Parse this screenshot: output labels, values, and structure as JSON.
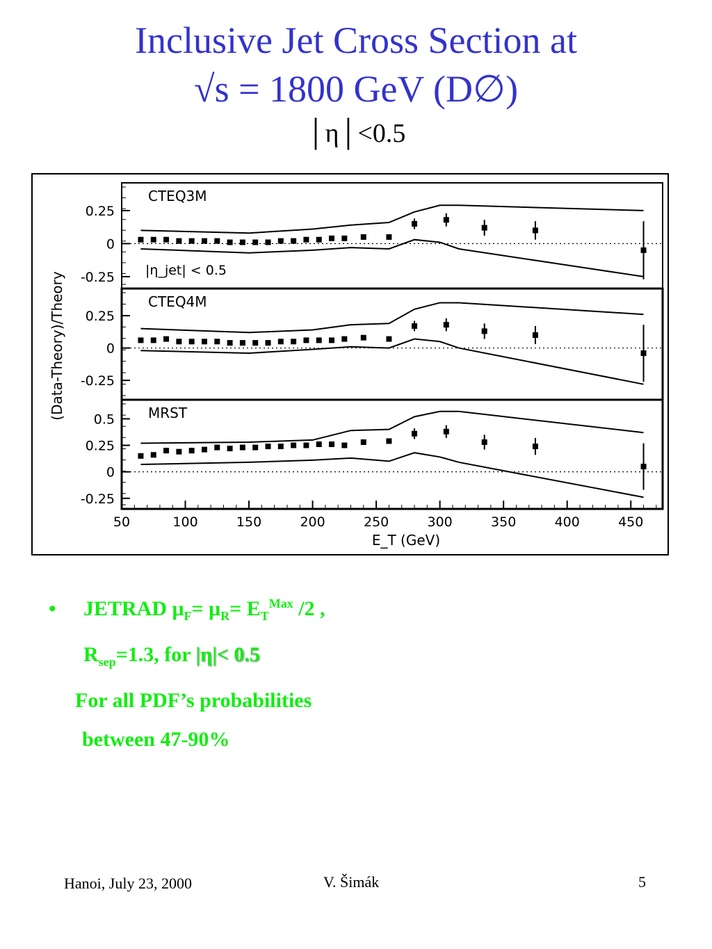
{
  "slide": {
    "title_line1": "Inclusive Jet Cross Section at",
    "title_line2": "√s = 1800 GeV (D∅)",
    "subtitle": "│η│<0.5",
    "bullet_char": "•",
    "jetrad": "JETRAD ",
    "mu": "μ",
    "sub_F": "F",
    "sub_R": "R",
    "eq": "= ",
    "eq2": "=  E",
    "sub_T": "T",
    "sup_max": "Max",
    "div2": " /2 ,",
    "rsep": "R",
    "sub_sep": "sep",
    "rsep_rest": "=1.3, for ",
    "eta_cut": "|η|< 0.5",
    "line3": "For all PDF’s probabilities",
    "line4": "between 47-90%",
    "footer_left": "Hanoi, July 23, 2000",
    "footer_center": "V. Šimák",
    "footer_right": "5"
  },
  "chart_data": {
    "type": "scatter",
    "xlabel": "E_T (GeV)",
    "ylabel": "(Data-Theory)/Theory",
    "xlim": [
      50,
      475
    ],
    "xticks": [
      "50",
      "100",
      "150",
      "200",
      "250",
      "300",
      "350",
      "400",
      "450"
    ],
    "x": [
      65,
      75,
      85,
      95,
      105,
      115,
      125,
      135,
      145,
      155,
      165,
      175,
      185,
      195,
      205,
      215,
      225,
      240,
      260,
      280,
      305,
      335,
      375,
      460
    ],
    "panels": [
      {
        "label": "CTEQ3M",
        "annotation": "|η_jet| < 0.5",
        "ylim": [
          -0.34,
          0.46
        ],
        "yticks": [
          "0.25",
          "0",
          "-0.25"
        ],
        "ytick_values": [
          0.25,
          0,
          -0.25
        ],
        "values": [
          0.03,
          0.03,
          0.03,
          0.02,
          0.02,
          0.02,
          0.02,
          0.01,
          0.01,
          0.01,
          0.01,
          0.02,
          0.02,
          0.03,
          0.03,
          0.04,
          0.04,
          0.05,
          0.05,
          0.15,
          0.18,
          0.12,
          0.1,
          -0.05
        ],
        "errors": [
          0.01,
          0.01,
          0.01,
          0.01,
          0.01,
          0.01,
          0.01,
          0.01,
          0.01,
          0.01,
          0.01,
          0.01,
          0.01,
          0.01,
          0.01,
          0.01,
          0.02,
          0.02,
          0.02,
          0.04,
          0.05,
          0.06,
          0.07,
          0.22
        ],
        "band_x": [
          65,
          150,
          200,
          230,
          260,
          280,
          300,
          315,
          460
        ],
        "band_upper": [
          0.1,
          0.08,
          0.11,
          0.14,
          0.16,
          0.24,
          0.29,
          0.29,
          0.25
        ],
        "band_lower": [
          -0.04,
          -0.07,
          -0.05,
          -0.03,
          -0.04,
          0.03,
          0.01,
          -0.04,
          -0.25
        ]
      },
      {
        "label": "CTEQ4M",
        "annotation": "",
        "ylim": [
          -0.4,
          0.46
        ],
        "yticks": [
          "0.25",
          "0",
          "-0.25"
        ],
        "ytick_values": [
          0.25,
          0,
          -0.25
        ],
        "values": [
          0.06,
          0.06,
          0.07,
          0.05,
          0.05,
          0.05,
          0.05,
          0.04,
          0.04,
          0.04,
          0.04,
          0.05,
          0.05,
          0.06,
          0.06,
          0.06,
          0.07,
          0.08,
          0.07,
          0.17,
          0.18,
          0.13,
          0.1,
          -0.04
        ],
        "errors": [
          0.01,
          0.01,
          0.01,
          0.01,
          0.01,
          0.01,
          0.01,
          0.01,
          0.01,
          0.01,
          0.01,
          0.01,
          0.01,
          0.01,
          0.01,
          0.01,
          0.02,
          0.02,
          0.02,
          0.04,
          0.05,
          0.06,
          0.07,
          0.22
        ],
        "band_x": [
          65,
          150,
          200,
          230,
          260,
          280,
          300,
          315,
          460
        ],
        "band_upper": [
          0.15,
          0.12,
          0.14,
          0.18,
          0.19,
          0.3,
          0.35,
          0.35,
          0.26
        ],
        "band_lower": [
          -0.02,
          -0.04,
          -0.01,
          0.01,
          0.0,
          0.07,
          0.05,
          0.0,
          -0.28
        ]
      },
      {
        "label": "MRST",
        "annotation": "",
        "ylim": [
          -0.35,
          0.68
        ],
        "yticks": [
          "0.5",
          "0.25",
          "0",
          "-0.25"
        ],
        "ytick_values": [
          0.5,
          0.25,
          0,
          -0.25
        ],
        "values": [
          0.15,
          0.16,
          0.2,
          0.19,
          0.2,
          0.21,
          0.23,
          0.22,
          0.23,
          0.23,
          0.24,
          0.24,
          0.25,
          0.25,
          0.26,
          0.26,
          0.25,
          0.28,
          0.29,
          0.36,
          0.38,
          0.28,
          0.24,
          0.05
        ],
        "errors": [
          0.01,
          0.01,
          0.01,
          0.01,
          0.01,
          0.01,
          0.01,
          0.01,
          0.01,
          0.01,
          0.01,
          0.01,
          0.01,
          0.01,
          0.01,
          0.01,
          0.02,
          0.02,
          0.02,
          0.05,
          0.06,
          0.07,
          0.08,
          0.22
        ],
        "band_x": [
          65,
          150,
          200,
          230,
          260,
          280,
          300,
          315,
          460
        ],
        "band_upper": [
          0.27,
          0.28,
          0.3,
          0.39,
          0.4,
          0.52,
          0.57,
          0.57,
          0.37
        ],
        "band_lower": [
          0.07,
          0.09,
          0.11,
          0.13,
          0.1,
          0.18,
          0.14,
          0.09,
          -0.24
        ]
      }
    ]
  }
}
